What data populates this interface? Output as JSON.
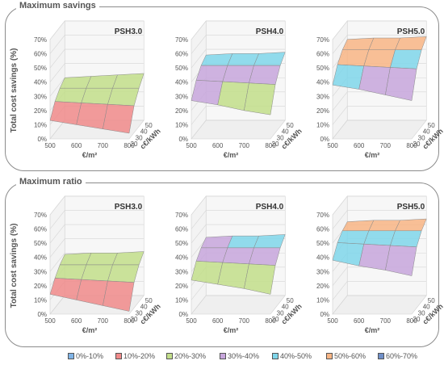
{
  "panels": [
    {
      "title": "Maximum savings"
    },
    {
      "title": "Maximum ratio"
    }
  ],
  "axes": {
    "ylabel": "Total cost savings (%)",
    "x1label": "€/m²",
    "x2label": "c€/kWh",
    "ytick_labels": [
      "0%",
      "10%",
      "20%",
      "30%",
      "40%",
      "50%",
      "60%",
      "70%"
    ],
    "x1_tick_labels": [
      "500",
      "600",
      "700",
      "800"
    ],
    "x2_tick_labels": [
      "20",
      "30",
      "40",
      "50"
    ]
  },
  "legend": [
    {
      "label": "0%-10%",
      "color": "#7fb3e6"
    },
    {
      "label": "10%-20%",
      "color": "#f08a8a"
    },
    {
      "label": "20%-30%",
      "color": "#c2de8a"
    },
    {
      "label": "30%-40%",
      "color": "#c7a6dc"
    },
    {
      "label": "40%-50%",
      "color": "#7fd6ea"
    },
    {
      "label": "50%-60%",
      "color": "#f8b585"
    },
    {
      "label": "60%-70%",
      "color": "#6f8fc8"
    }
  ],
  "chart_data": [
    {
      "type": "area",
      "panel": "Maximum savings",
      "title": "PSH3.0",
      "x1": [
        500,
        600,
        700,
        800
      ],
      "x2": [
        20,
        30,
        40,
        50
      ],
      "zlim": [
        0,
        70
      ],
      "z": [
        [
          13,
          22,
          27,
          30
        ],
        [
          10,
          21,
          27,
          31
        ],
        [
          7,
          20,
          27,
          32
        ],
        [
          4,
          19,
          27,
          33
        ]
      ]
    },
    {
      "type": "area",
      "panel": "Maximum savings",
      "title": "PSH4.0",
      "x1": [
        500,
        600,
        700,
        800
      ],
      "x2": [
        20,
        30,
        40,
        50
      ],
      "zlim": [
        0,
        70
      ],
      "z": [
        [
          27,
          37,
          43,
          46
        ],
        [
          24,
          36,
          43,
          47
        ],
        [
          20,
          35,
          43,
          47
        ],
        [
          17,
          34,
          43,
          48
        ]
      ]
    },
    {
      "type": "area",
      "panel": "Maximum savings",
      "title": "PSH5.0",
      "x1": [
        500,
        600,
        700,
        800
      ],
      "x2": [
        20,
        30,
        40,
        50
      ],
      "zlim": [
        0,
        70
      ],
      "z": [
        [
          38,
          48,
          54,
          57
        ],
        [
          35,
          47,
          54,
          58
        ],
        [
          31,
          46,
          54,
          58
        ],
        [
          27,
          45,
          54,
          59
        ]
      ]
    },
    {
      "type": "area",
      "panel": "Maximum ratio",
      "title": "PSH3.0",
      "x1": [
        500,
        600,
        700,
        800
      ],
      "x2": [
        20,
        30,
        40,
        50
      ],
      "zlim": [
        0,
        70
      ],
      "z": [
        [
          14,
          21,
          26,
          29
        ],
        [
          10,
          20,
          26,
          30
        ],
        [
          6,
          19,
          26,
          30
        ],
        [
          2,
          18,
          26,
          31
        ]
      ]
    },
    {
      "type": "area",
      "panel": "Maximum ratio",
      "title": "PSH4.0",
      "x1": [
        500,
        600,
        700,
        800
      ],
      "x2": [
        20,
        30,
        40,
        50
      ],
      "zlim": [
        0,
        70
      ],
      "z": [
        [
          24,
          33,
          38,
          41
        ],
        [
          21,
          32,
          38,
          42
        ],
        [
          18,
          31,
          38,
          42
        ],
        [
          14,
          30,
          38,
          43
        ]
      ]
    },
    {
      "type": "area",
      "panel": "Maximum ratio",
      "title": "PSH5.0",
      "x1": [
        500,
        600,
        700,
        800
      ],
      "x2": [
        20,
        30,
        40,
        50
      ],
      "zlim": [
        0,
        70
      ],
      "z": [
        [
          38,
          46,
          50,
          52
        ],
        [
          34,
          45,
          50,
          53
        ],
        [
          31,
          44,
          50,
          53
        ],
        [
          27,
          43,
          50,
          54
        ]
      ]
    }
  ]
}
